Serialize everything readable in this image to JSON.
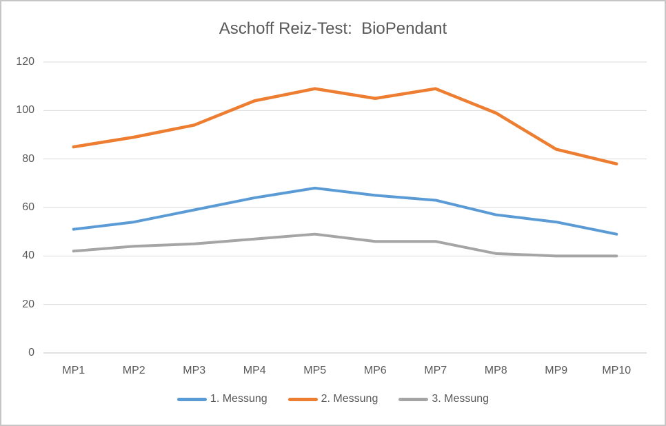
{
  "window": {
    "background": "#ffffff",
    "border_color": "#c6c6c6"
  },
  "chart_data": {
    "type": "line",
    "title": "Aschoff Reiz-Test:  BioPendant",
    "xlabel": "",
    "ylabel": "",
    "categories": [
      "MP1",
      "MP2",
      "MP3",
      "MP4",
      "MP5",
      "MP6",
      "MP7",
      "MP8",
      "MP9",
      "MP10"
    ],
    "series": [
      {
        "name": "1. Messung",
        "color": "#5B9BD5",
        "stroke_width": 4,
        "values": [
          51,
          54,
          59,
          64,
          68,
          65,
          63,
          57,
          54,
          49
        ]
      },
      {
        "name": "2. Messung",
        "color": "#ED7D31",
        "stroke_width": 4.5,
        "values": [
          85,
          89,
          94,
          104,
          109,
          105,
          109,
          99,
          84,
          78
        ]
      },
      {
        "name": "3. Messung",
        "color": "#A5A5A5",
        "stroke_width": 4,
        "values": [
          42,
          44,
          45,
          47,
          49,
          46,
          46,
          41,
          40,
          40
        ]
      }
    ],
    "y_axis": {
      "min": 0,
      "max": 120,
      "step": 20,
      "ticks": [
        0,
        20,
        40,
        60,
        80,
        100,
        120
      ]
    },
    "grid": true,
    "legend_position": "bottom",
    "colors": {
      "title_text": "#595959",
      "axis_text": "#595959",
      "gridline": "#D9D9D9",
      "zero_axis_line": "#C3C3C3"
    }
  }
}
